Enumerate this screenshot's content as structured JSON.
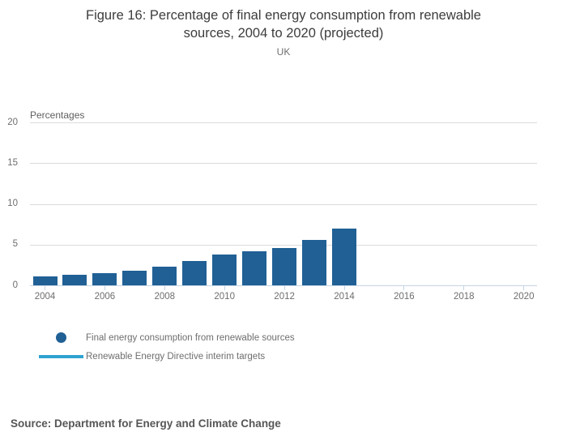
{
  "header": {
    "title_line1": "Figure 16: Percentage of final energy consumption from renewable",
    "title_line2": "sources, 2004 to 2020 (projected)",
    "subtitle": "UK"
  },
  "chart_data": {
    "type": "bar",
    "title": "Figure 16: Percentage of final energy consumption from renewable sources, 2004 to 2020 (projected)",
    "subtitle": "UK",
    "ylabel": "Percentages",
    "categories": [
      2004,
      2005,
      2006,
      2007,
      2008,
      2009,
      2010,
      2011,
      2012,
      2013,
      2014
    ],
    "values": [
      1.1,
      1.3,
      1.5,
      1.8,
      2.3,
      3.0,
      3.8,
      4.2,
      4.6,
      5.6,
      7.0
    ],
    "series": [
      {
        "name": "Final energy consumption from renewable sources",
        "type": "bar",
        "color": "#206095",
        "years": [
          2004,
          2005,
          2006,
          2007,
          2008,
          2009,
          2010,
          2011,
          2012,
          2013,
          2014
        ],
        "values": [
          1.1,
          1.3,
          1.5,
          1.8,
          2.3,
          3.0,
          3.8,
          4.2,
          4.6,
          5.6,
          7.0
        ]
      },
      {
        "name": "Renewable Energy Directive interim targets",
        "type": "line",
        "color": "#2fa3d2",
        "values": []
      }
    ],
    "x_axis": {
      "ticks": [
        2004,
        2006,
        2008,
        2010,
        2012,
        2014,
        2016,
        2018,
        2020
      ],
      "range": [
        2003.5,
        2020.5
      ]
    },
    "y_axis": {
      "label": "Percentages",
      "ticks": [
        0,
        5,
        10,
        15,
        20
      ],
      "range": [
        0,
        20
      ]
    },
    "grid": true,
    "legend_position": "bottom-left",
    "legend": [
      {
        "label": "Final energy consumption from renewable sources",
        "marker": "circle",
        "color": "#206095"
      },
      {
        "label": "Renewable Energy Directive interim targets",
        "marker": "line",
        "color": "#2fa3d2"
      }
    ],
    "source": "Source: Department for Energy and Climate Change"
  },
  "colors": {
    "bar": "#206095",
    "target_line": "#2fa3d2",
    "gridline": "#dcdcdc",
    "axis": "#c5d4e3",
    "text_gray": "#6e6e6e",
    "title_text": "#3c3c3c",
    "source_text": "#565656"
  }
}
